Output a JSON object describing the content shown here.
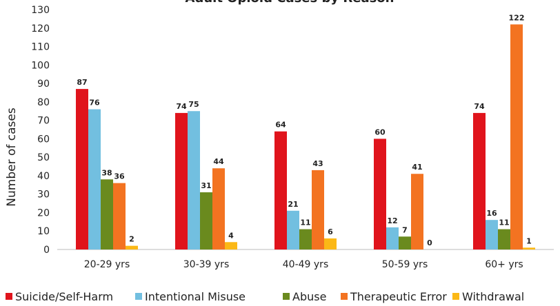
{
  "chart_data": {
    "type": "bar",
    "title": "Adult Opioid Cases by Reason",
    "y_label": "Number of cases",
    "categories": [
      "20-29 yrs",
      "30-39 yrs",
      "40-49 yrs",
      "50-59 yrs",
      "60+ yrs"
    ],
    "series": [
      {
        "name": "Suicide/Self-Harm",
        "color": "#e0141c",
        "values": [
          87,
          74,
          64,
          60,
          74
        ]
      },
      {
        "name": "Intentional Misuse",
        "color": "#72bfe0",
        "values": [
          76,
          75,
          21,
          12,
          16
        ]
      },
      {
        "name": "Abuse",
        "color": "#6a8a1e",
        "values": [
          38,
          31,
          11,
          7,
          11
        ]
      },
      {
        "name": "Therapeutic Error",
        "color": "#f37321",
        "values": [
          36,
          44,
          43,
          41,
          122
        ]
      },
      {
        "name": "Withdrawal",
        "color": "#fbb816",
        "values": [
          2,
          4,
          6,
          0,
          1
        ]
      }
    ],
    "ylim": [
      0,
      130
    ],
    "yticks": [
      0,
      10,
      20,
      30,
      40,
      50,
      60,
      70,
      80,
      90,
      100,
      110,
      120,
      130
    ],
    "grid": false,
    "legend": "bottom"
  }
}
